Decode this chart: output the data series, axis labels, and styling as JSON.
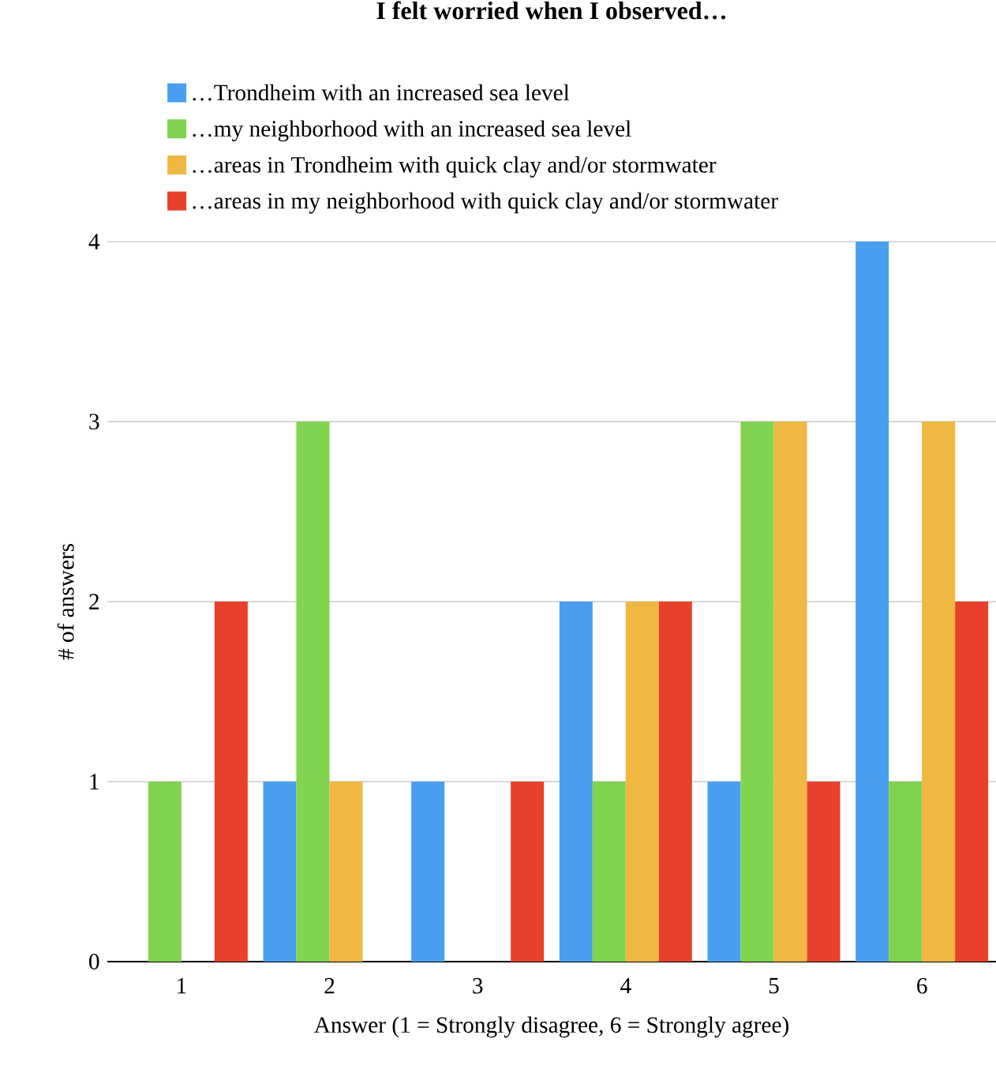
{
  "chart_data": {
    "type": "bar",
    "title": "I felt worried when I observed…",
    "xlabel": "Answer (1 = Strongly disagree, 6 = Strongly agree)",
    "ylabel": "# of answers",
    "categories": [
      "1",
      "2",
      "3",
      "4",
      "5",
      "6"
    ],
    "series": [
      {
        "name": "…Trondheim with an increased sea level",
        "color": "#4a9ef0",
        "values": [
          0,
          1,
          1,
          2,
          1,
          4
        ]
      },
      {
        "name": "…my neighborhood with an increased sea level",
        "color": "#80d450",
        "values": [
          1,
          3,
          0,
          1,
          3,
          1
        ]
      },
      {
        "name": "…areas in Trondheim with quick clay and/or stormwater",
        "color": "#f0b840",
        "values": [
          0,
          1,
          0,
          2,
          3,
          3
        ]
      },
      {
        "name": "…areas in my neighborhood with quick clay and/or stormwater",
        "color": "#e8402a",
        "values": [
          2,
          0,
          1,
          2,
          1,
          2
        ]
      }
    ],
    "ylim": [
      0,
      4
    ],
    "yticks": [
      0,
      1,
      2,
      3,
      4
    ],
    "grid": "y",
    "legend": "top"
  }
}
